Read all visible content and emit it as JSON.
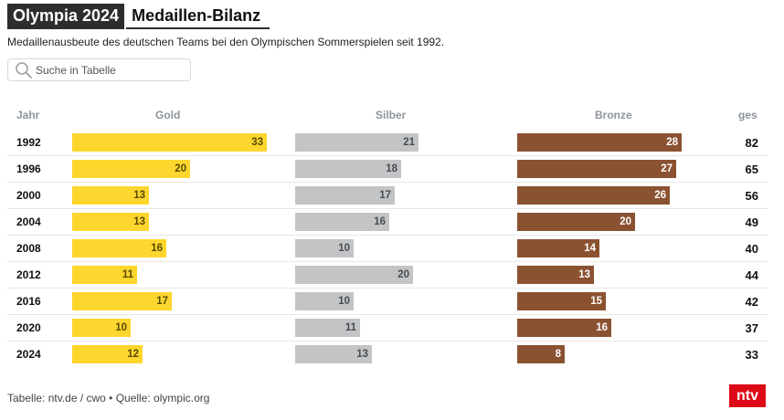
{
  "header": {
    "title_dark": "Olympia 2024",
    "title_light": "Medaillen-Bilanz",
    "subtitle": "Medaillenausbeute des deutschen Teams bei den Olympischen Sommerspielen seit 1992."
  },
  "search": {
    "placeholder": "Suche in Tabelle",
    "icon": "search-icon"
  },
  "columns": {
    "year": "Jahr",
    "gold": "Gold",
    "silver": "Silber",
    "bronze": "Bronze",
    "total": "ges"
  },
  "colors": {
    "gold": "#fdd62e",
    "gold_text": "#5a4a00",
    "silver": "#c2c4c6",
    "silver_text": "#4a4d50",
    "bronze": "#8b5232",
    "bronze_text": "#ffffff",
    "header_text": "#8d949b",
    "brand": "#dc0a17"
  },
  "chart_data": {
    "type": "table",
    "categories": [
      "1992",
      "1996",
      "2000",
      "2004",
      "2008",
      "2012",
      "2016",
      "2020",
      "2024"
    ],
    "series": [
      {
        "name": "Gold",
        "values": [
          33,
          20,
          13,
          13,
          16,
          11,
          17,
          10,
          12
        ]
      },
      {
        "name": "Silber",
        "values": [
          21,
          18,
          17,
          16,
          10,
          20,
          10,
          11,
          13
        ]
      },
      {
        "name": "Bronze",
        "values": [
          28,
          27,
          26,
          20,
          14,
          13,
          15,
          16,
          8
        ]
      }
    ],
    "totals": [
      "82",
      "65",
      "56",
      "49",
      "40",
      "44",
      "42",
      "37",
      "33"
    ],
    "title": "Olympia 2024 Medaillen-Bilanz",
    "xlabel": "",
    "ylabel": "",
    "grid": false,
    "legend": "none"
  },
  "footer": {
    "source": "Tabelle: ntv.de / cwo • Quelle: olympic.org"
  },
  "logo": {
    "text": "ntv"
  }
}
